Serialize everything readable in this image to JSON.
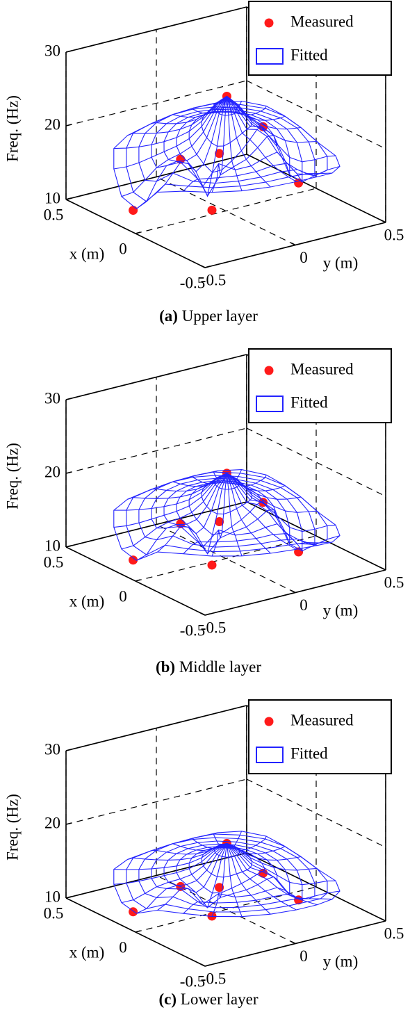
{
  "chart_data": [
    {
      "type": "scatter3d",
      "label": "(a)",
      "caption": "Upper layer",
      "zlabel": "Freq. (Hz)",
      "xlabel": "x (m)",
      "ylabel": "y (m)",
      "xlim": [
        -0.5,
        0.5
      ],
      "ylim": [
        -0.5,
        0.5
      ],
      "zlim": [
        10,
        30
      ],
      "xticks": [
        -0.5,
        0,
        0.5
      ],
      "yticks": [
        -0.5,
        0,
        0.5
      ],
      "zticks": [
        10,
        20,
        30
      ],
      "grid": true,
      "legend": "northeast",
      "series": [
        {
          "name": "Measured",
          "color": "#ff1a1a",
          "x": [
            0.11,
            -0.06,
            -0.07,
            0.04,
            -0.12,
            0.16,
            -0.03
          ],
          "y": [
            0.09,
            0.16,
            -0.09,
            -0.22,
            0.31,
            -0.39,
            -0.1
          ],
          "z": [
            24,
            21,
            19,
            18,
            13,
            11,
            11
          ]
        },
        {
          "name": "Fitted",
          "color": "#2323ff",
          "type": "surface"
        }
      ]
    },
    {
      "type": "scatter3d",
      "label": "(b)",
      "caption": "Middle layer",
      "zlabel": "Freq. (Hz)",
      "xlabel": "x (m)",
      "ylabel": "y (m)",
      "xlim": [
        -0.5,
        0.5
      ],
      "ylim": [
        -0.5,
        0.5
      ],
      "zlim": [
        10,
        30
      ],
      "xticks": [
        -0.5,
        0,
        0.5
      ],
      "yticks": [
        -0.5,
        0,
        0.5
      ],
      "zticks": [
        10,
        20,
        30
      ],
      "grid": true,
      "legend": "northeast",
      "series": [
        {
          "name": "Measured",
          "color": "#ff1a1a",
          "x": [
            0.11,
            -0.06,
            -0.07,
            0.04,
            -0.12,
            0.16,
            -0.03
          ],
          "y": [
            0.09,
            0.16,
            -0.09,
            -0.22,
            0.31,
            -0.39,
            -0.1
          ],
          "z": [
            20,
            17.2,
            16.2,
            15.7,
            10.1,
            10.7,
            10
          ]
        },
        {
          "name": "Fitted",
          "color": "#2323ff",
          "type": "surface"
        }
      ]
    },
    {
      "type": "scatter3d",
      "label": "(c)",
      "caption": "Lower layer",
      "zlabel": "Freq. (Hz)",
      "xlabel": "x (m)",
      "ylabel": "y (m)",
      "xlim": [
        -0.5,
        0.5
      ],
      "ylim": [
        -0.5,
        0.5
      ],
      "zlim": [
        10,
        30
      ],
      "xticks": [
        -0.5,
        0,
        0.5
      ],
      "yticks": [
        -0.5,
        0,
        0.5
      ],
      "zticks": [
        10,
        20,
        30
      ],
      "grid": true,
      "legend": "northeast",
      "series": [
        {
          "name": "Measured",
          "color": "#ff1a1a",
          "x": [
            0.11,
            -0.06,
            -0.07,
            0.04,
            -0.12,
            0.16,
            -0.03
          ],
          "y": [
            0.09,
            0.16,
            -0.09,
            -0.22,
            0.31,
            -0.39,
            -0.1
          ],
          "z": [
            17.4,
            14.5,
            14.2,
            14.1,
            10.5,
            10.6,
            10
          ]
        },
        {
          "name": "Fitted",
          "color": "#2323ff",
          "type": "surface"
        }
      ]
    }
  ]
}
